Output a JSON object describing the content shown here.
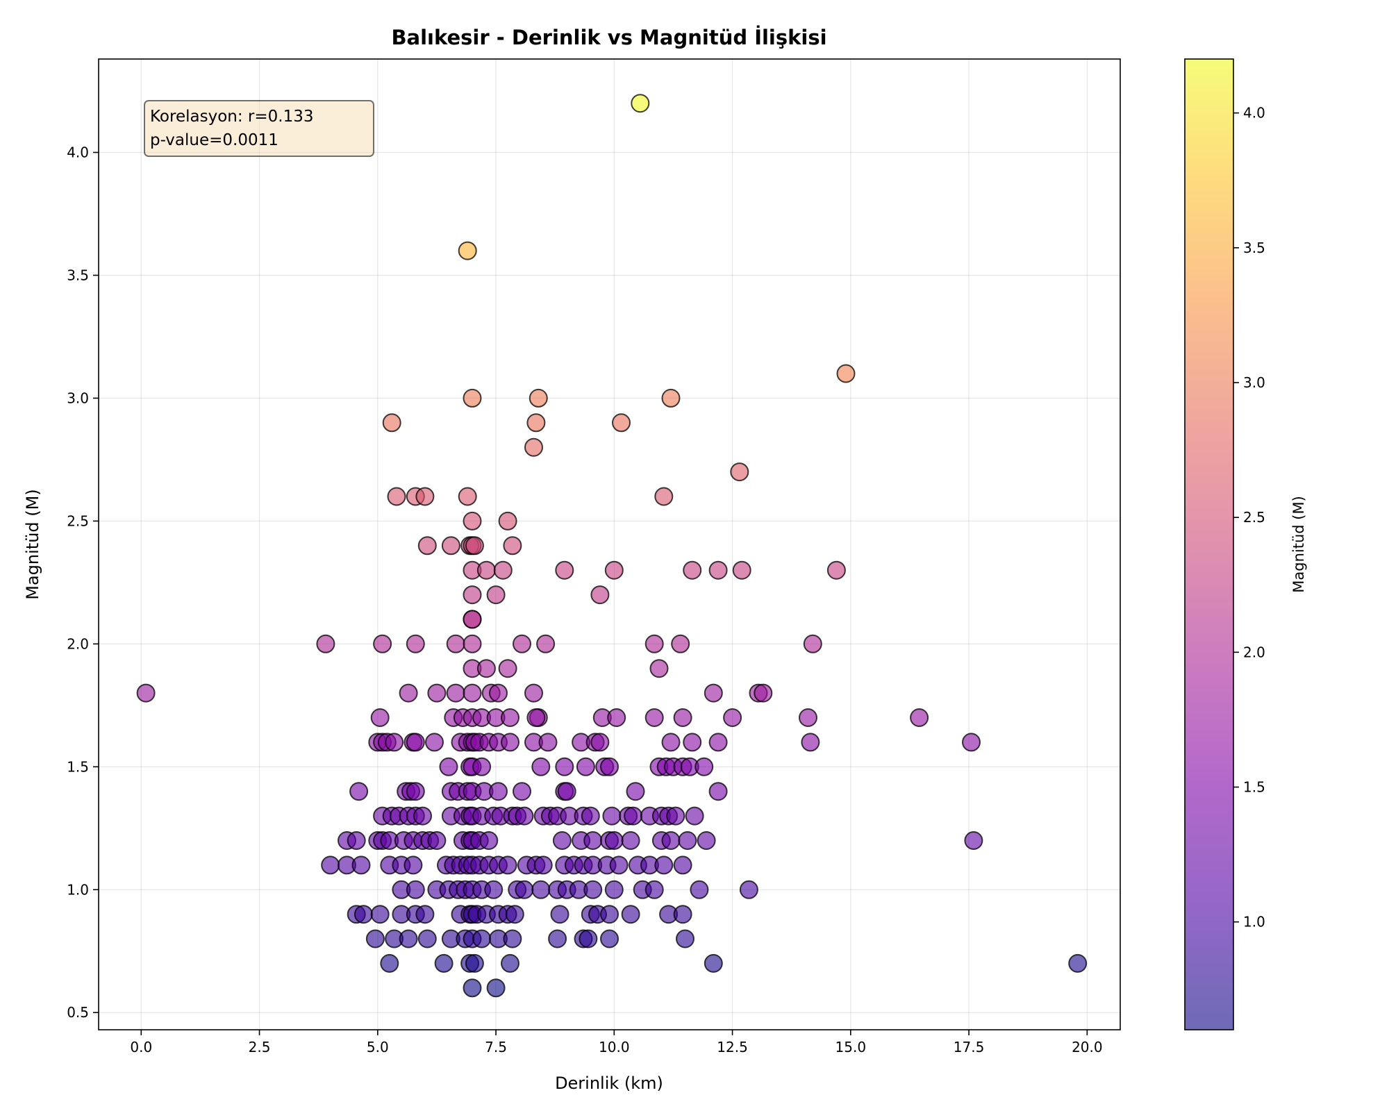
{
  "chart_data": {
    "type": "scatter",
    "title": "Balıkesir - Derinlik vs Magnitüd İlişkisi",
    "xlabel": "Derinlik (km)",
    "ylabel": "Magnitüd (M)",
    "xlim": [
      -0.9,
      20.7
    ],
    "ylim": [
      0.43,
      4.38
    ],
    "xticks": [
      0.0,
      2.5,
      5.0,
      7.5,
      10.0,
      12.5,
      15.0,
      17.5,
      20.0
    ],
    "xtick_labels": [
      "0.0",
      "2.5",
      "5.0",
      "7.5",
      "10.0",
      "12.5",
      "15.0",
      "17.5",
      "20.0"
    ],
    "yticks": [
      0.5,
      1.0,
      1.5,
      2.0,
      2.5,
      3.0,
      3.5,
      4.0
    ],
    "ytick_labels": [
      "0.5",
      "1.0",
      "1.5",
      "2.0",
      "2.5",
      "3.0",
      "3.5",
      "4.0"
    ],
    "grid": true,
    "annotation": {
      "lines": [
        "Korelasyon: r=0.133",
        "p-value=0.0011"
      ],
      "position": "top-left"
    },
    "colorbar": {
      "label": "Magnitüd (M)",
      "colormap": "plasma",
      "range": [
        0.6,
        4.2
      ],
      "ticks": [
        1.0,
        1.5,
        2.0,
        2.5,
        3.0,
        3.5,
        4.0
      ],
      "tick_labels": [
        "1.0",
        "1.5",
        "2.0",
        "2.5",
        "3.0",
        "3.5",
        "4.0"
      ],
      "alpha": 0.6
    },
    "point_alpha": 0.6,
    "points": [
      [
        10.55,
        4.2
      ],
      [
        6.9,
        3.6
      ],
      [
        14.9,
        3.1
      ],
      [
        7.0,
        3.0
      ],
      [
        8.4,
        3.0
      ],
      [
        11.2,
        3.0
      ],
      [
        5.3,
        2.9
      ],
      [
        8.35,
        2.9
      ],
      [
        10.15,
        2.9
      ],
      [
        8.3,
        2.8
      ],
      [
        12.65,
        2.7
      ],
      [
        5.4,
        2.6
      ],
      [
        5.8,
        2.6
      ],
      [
        6.0,
        2.6
      ],
      [
        6.9,
        2.6
      ],
      [
        11.05,
        2.6
      ],
      [
        7.0,
        2.5
      ],
      [
        7.75,
        2.5
      ],
      [
        6.05,
        2.4
      ],
      [
        6.55,
        2.4
      ],
      [
        6.95,
        2.4
      ],
      [
        7.0,
        2.4
      ],
      [
        7.05,
        2.4
      ],
      [
        7.85,
        2.4
      ],
      [
        7.0,
        2.3
      ],
      [
        7.3,
        2.3
      ],
      [
        7.65,
        2.3
      ],
      [
        8.95,
        2.3
      ],
      [
        10.0,
        2.3
      ],
      [
        11.65,
        2.3
      ],
      [
        12.2,
        2.3
      ],
      [
        12.7,
        2.3
      ],
      [
        14.7,
        2.3
      ],
      [
        7.0,
        2.2
      ],
      [
        7.5,
        2.2
      ],
      [
        9.7,
        2.2
      ],
      [
        7.0,
        2.1
      ],
      [
        7.0,
        2.1
      ],
      [
        3.9,
        2.0
      ],
      [
        5.1,
        2.0
      ],
      [
        5.8,
        2.0
      ],
      [
        6.65,
        2.0
      ],
      [
        7.0,
        2.0
      ],
      [
        8.05,
        2.0
      ],
      [
        8.55,
        2.0
      ],
      [
        10.85,
        2.0
      ],
      [
        11.4,
        2.0
      ],
      [
        14.2,
        2.0
      ],
      [
        7.0,
        1.9
      ],
      [
        7.3,
        1.9
      ],
      [
        7.75,
        1.9
      ],
      [
        10.95,
        1.9
      ],
      [
        0.1,
        1.8
      ],
      [
        5.65,
        1.8
      ],
      [
        6.25,
        1.8
      ],
      [
        6.65,
        1.8
      ],
      [
        7.0,
        1.8
      ],
      [
        7.4,
        1.8
      ],
      [
        7.55,
        1.8
      ],
      [
        8.3,
        1.8
      ],
      [
        12.1,
        1.8
      ],
      [
        13.05,
        1.8
      ],
      [
        13.15,
        1.8
      ],
      [
        5.05,
        1.7
      ],
      [
        6.6,
        1.7
      ],
      [
        6.8,
        1.7
      ],
      [
        7.0,
        1.7
      ],
      [
        7.2,
        1.7
      ],
      [
        7.5,
        1.7
      ],
      [
        7.8,
        1.7
      ],
      [
        8.4,
        1.7
      ],
      [
        8.35,
        1.7
      ],
      [
        9.75,
        1.7
      ],
      [
        10.05,
        1.7
      ],
      [
        10.85,
        1.7
      ],
      [
        11.45,
        1.7
      ],
      [
        12.5,
        1.7
      ],
      [
        14.1,
        1.7
      ],
      [
        16.45,
        1.7
      ],
      [
        5.0,
        1.6
      ],
      [
        5.1,
        1.6
      ],
      [
        5.2,
        1.6
      ],
      [
        5.35,
        1.6
      ],
      [
        5.75,
        1.6
      ],
      [
        5.8,
        1.6
      ],
      [
        6.2,
        1.6
      ],
      [
        6.75,
        1.6
      ],
      [
        6.9,
        1.6
      ],
      [
        7.0,
        1.6
      ],
      [
        7.05,
        1.6
      ],
      [
        7.15,
        1.6
      ],
      [
        7.35,
        1.6
      ],
      [
        7.55,
        1.6
      ],
      [
        7.8,
        1.6
      ],
      [
        8.3,
        1.6
      ],
      [
        8.6,
        1.6
      ],
      [
        9.3,
        1.6
      ],
      [
        9.6,
        1.6
      ],
      [
        9.7,
        1.6
      ],
      [
        11.2,
        1.6
      ],
      [
        11.65,
        1.6
      ],
      [
        12.2,
        1.6
      ],
      [
        14.15,
        1.6
      ],
      [
        17.55,
        1.6
      ],
      [
        6.5,
        1.5
      ],
      [
        6.95,
        1.5
      ],
      [
        7.0,
        1.5
      ],
      [
        7.2,
        1.5
      ],
      [
        8.45,
        1.5
      ],
      [
        8.95,
        1.5
      ],
      [
        9.4,
        1.5
      ],
      [
        9.8,
        1.5
      ],
      [
        9.9,
        1.5
      ],
      [
        10.95,
        1.5
      ],
      [
        11.1,
        1.5
      ],
      [
        11.25,
        1.5
      ],
      [
        11.45,
        1.5
      ],
      [
        11.6,
        1.5
      ],
      [
        11.9,
        1.5
      ],
      [
        4.6,
        1.4
      ],
      [
        5.6,
        1.4
      ],
      [
        5.7,
        1.4
      ],
      [
        5.8,
        1.4
      ],
      [
        6.55,
        1.4
      ],
      [
        6.7,
        1.4
      ],
      [
        6.9,
        1.4
      ],
      [
        7.0,
        1.4
      ],
      [
        7.25,
        1.4
      ],
      [
        7.55,
        1.4
      ],
      [
        8.05,
        1.4
      ],
      [
        8.95,
        1.4
      ],
      [
        9.0,
        1.4
      ],
      [
        10.45,
        1.4
      ],
      [
        12.2,
        1.4
      ],
      [
        5.1,
        1.3
      ],
      [
        5.3,
        1.3
      ],
      [
        5.45,
        1.3
      ],
      [
        5.65,
        1.3
      ],
      [
        5.8,
        1.3
      ],
      [
        5.95,
        1.3
      ],
      [
        6.55,
        1.3
      ],
      [
        6.8,
        1.3
      ],
      [
        6.95,
        1.3
      ],
      [
        7.0,
        1.3
      ],
      [
        7.2,
        1.3
      ],
      [
        7.45,
        1.3
      ],
      [
        7.6,
        1.3
      ],
      [
        7.85,
        1.3
      ],
      [
        7.95,
        1.3
      ],
      [
        8.1,
        1.3
      ],
      [
        8.5,
        1.3
      ],
      [
        8.65,
        1.3
      ],
      [
        8.8,
        1.3
      ],
      [
        9.05,
        1.3
      ],
      [
        9.35,
        1.3
      ],
      [
        9.5,
        1.3
      ],
      [
        9.95,
        1.3
      ],
      [
        10.3,
        1.3
      ],
      [
        10.4,
        1.3
      ],
      [
        10.75,
        1.3
      ],
      [
        11.0,
        1.3
      ],
      [
        11.15,
        1.3
      ],
      [
        11.3,
        1.3
      ],
      [
        11.7,
        1.3
      ],
      [
        4.35,
        1.2
      ],
      [
        4.55,
        1.2
      ],
      [
        5.0,
        1.2
      ],
      [
        5.1,
        1.2
      ],
      [
        5.25,
        1.2
      ],
      [
        5.55,
        1.2
      ],
      [
        5.75,
        1.2
      ],
      [
        5.95,
        1.2
      ],
      [
        6.1,
        1.2
      ],
      [
        6.25,
        1.2
      ],
      [
        6.8,
        1.2
      ],
      [
        6.95,
        1.2
      ],
      [
        7.0,
        1.2
      ],
      [
        7.15,
        1.2
      ],
      [
        7.35,
        1.2
      ],
      [
        8.9,
        1.2
      ],
      [
        9.3,
        1.2
      ],
      [
        9.55,
        1.2
      ],
      [
        9.9,
        1.2
      ],
      [
        10.0,
        1.2
      ],
      [
        10.35,
        1.2
      ],
      [
        11.0,
        1.2
      ],
      [
        11.2,
        1.2
      ],
      [
        11.55,
        1.2
      ],
      [
        11.95,
        1.2
      ],
      [
        17.6,
        1.2
      ],
      [
        4.0,
        1.1
      ],
      [
        4.35,
        1.1
      ],
      [
        4.65,
        1.1
      ],
      [
        5.25,
        1.1
      ],
      [
        5.5,
        1.1
      ],
      [
        5.75,
        1.1
      ],
      [
        6.45,
        1.1
      ],
      [
        6.6,
        1.1
      ],
      [
        6.75,
        1.1
      ],
      [
        6.9,
        1.1
      ],
      [
        7.0,
        1.1
      ],
      [
        7.15,
        1.1
      ],
      [
        7.35,
        1.1
      ],
      [
        7.55,
        1.1
      ],
      [
        7.75,
        1.1
      ],
      [
        8.15,
        1.1
      ],
      [
        8.35,
        1.1
      ],
      [
        8.5,
        1.1
      ],
      [
        8.95,
        1.1
      ],
      [
        9.15,
        1.1
      ],
      [
        9.35,
        1.1
      ],
      [
        9.55,
        1.1
      ],
      [
        9.85,
        1.1
      ],
      [
        10.1,
        1.1
      ],
      [
        10.5,
        1.1
      ],
      [
        10.75,
        1.1
      ],
      [
        11.05,
        1.1
      ],
      [
        11.45,
        1.1
      ],
      [
        5.5,
        1.0
      ],
      [
        5.8,
        1.0
      ],
      [
        6.25,
        1.0
      ],
      [
        6.5,
        1.0
      ],
      [
        6.7,
        1.0
      ],
      [
        6.85,
        1.0
      ],
      [
        7.0,
        1.0
      ],
      [
        7.2,
        1.0
      ],
      [
        7.45,
        1.0
      ],
      [
        7.95,
        1.0
      ],
      [
        8.1,
        1.0
      ],
      [
        8.45,
        1.0
      ],
      [
        8.8,
        1.0
      ],
      [
        9.0,
        1.0
      ],
      [
        9.25,
        1.0
      ],
      [
        9.55,
        1.0
      ],
      [
        10.0,
        1.0
      ],
      [
        10.6,
        1.0
      ],
      [
        10.85,
        1.0
      ],
      [
        11.8,
        1.0
      ],
      [
        12.85,
        1.0
      ],
      [
        4.55,
        0.9
      ],
      [
        4.7,
        0.9
      ],
      [
        5.05,
        0.9
      ],
      [
        5.5,
        0.9
      ],
      [
        5.8,
        0.9
      ],
      [
        6.0,
        0.9
      ],
      [
        6.75,
        0.9
      ],
      [
        6.95,
        0.9
      ],
      [
        7.0,
        0.9
      ],
      [
        7.1,
        0.9
      ],
      [
        7.3,
        0.9
      ],
      [
        7.55,
        0.9
      ],
      [
        7.75,
        0.9
      ],
      [
        7.9,
        0.9
      ],
      [
        8.85,
        0.9
      ],
      [
        9.5,
        0.9
      ],
      [
        9.65,
        0.9
      ],
      [
        9.9,
        0.9
      ],
      [
        10.35,
        0.9
      ],
      [
        11.15,
        0.9
      ],
      [
        11.45,
        0.9
      ],
      [
        4.95,
        0.8
      ],
      [
        5.35,
        0.8
      ],
      [
        5.65,
        0.8
      ],
      [
        6.05,
        0.8
      ],
      [
        6.55,
        0.8
      ],
      [
        6.85,
        0.8
      ],
      [
        7.0,
        0.8
      ],
      [
        7.2,
        0.8
      ],
      [
        7.55,
        0.8
      ],
      [
        7.85,
        0.8
      ],
      [
        8.8,
        0.8
      ],
      [
        9.35,
        0.8
      ],
      [
        9.45,
        0.8
      ],
      [
        9.9,
        0.8
      ],
      [
        11.5,
        0.8
      ],
      [
        5.25,
        0.7
      ],
      [
        6.4,
        0.7
      ],
      [
        6.95,
        0.7
      ],
      [
        7.05,
        0.7
      ],
      [
        7.8,
        0.7
      ],
      [
        12.1,
        0.7
      ],
      [
        19.8,
        0.7
      ],
      [
        7.0,
        0.6
      ],
      [
        7.5,
        0.6
      ]
    ]
  }
}
